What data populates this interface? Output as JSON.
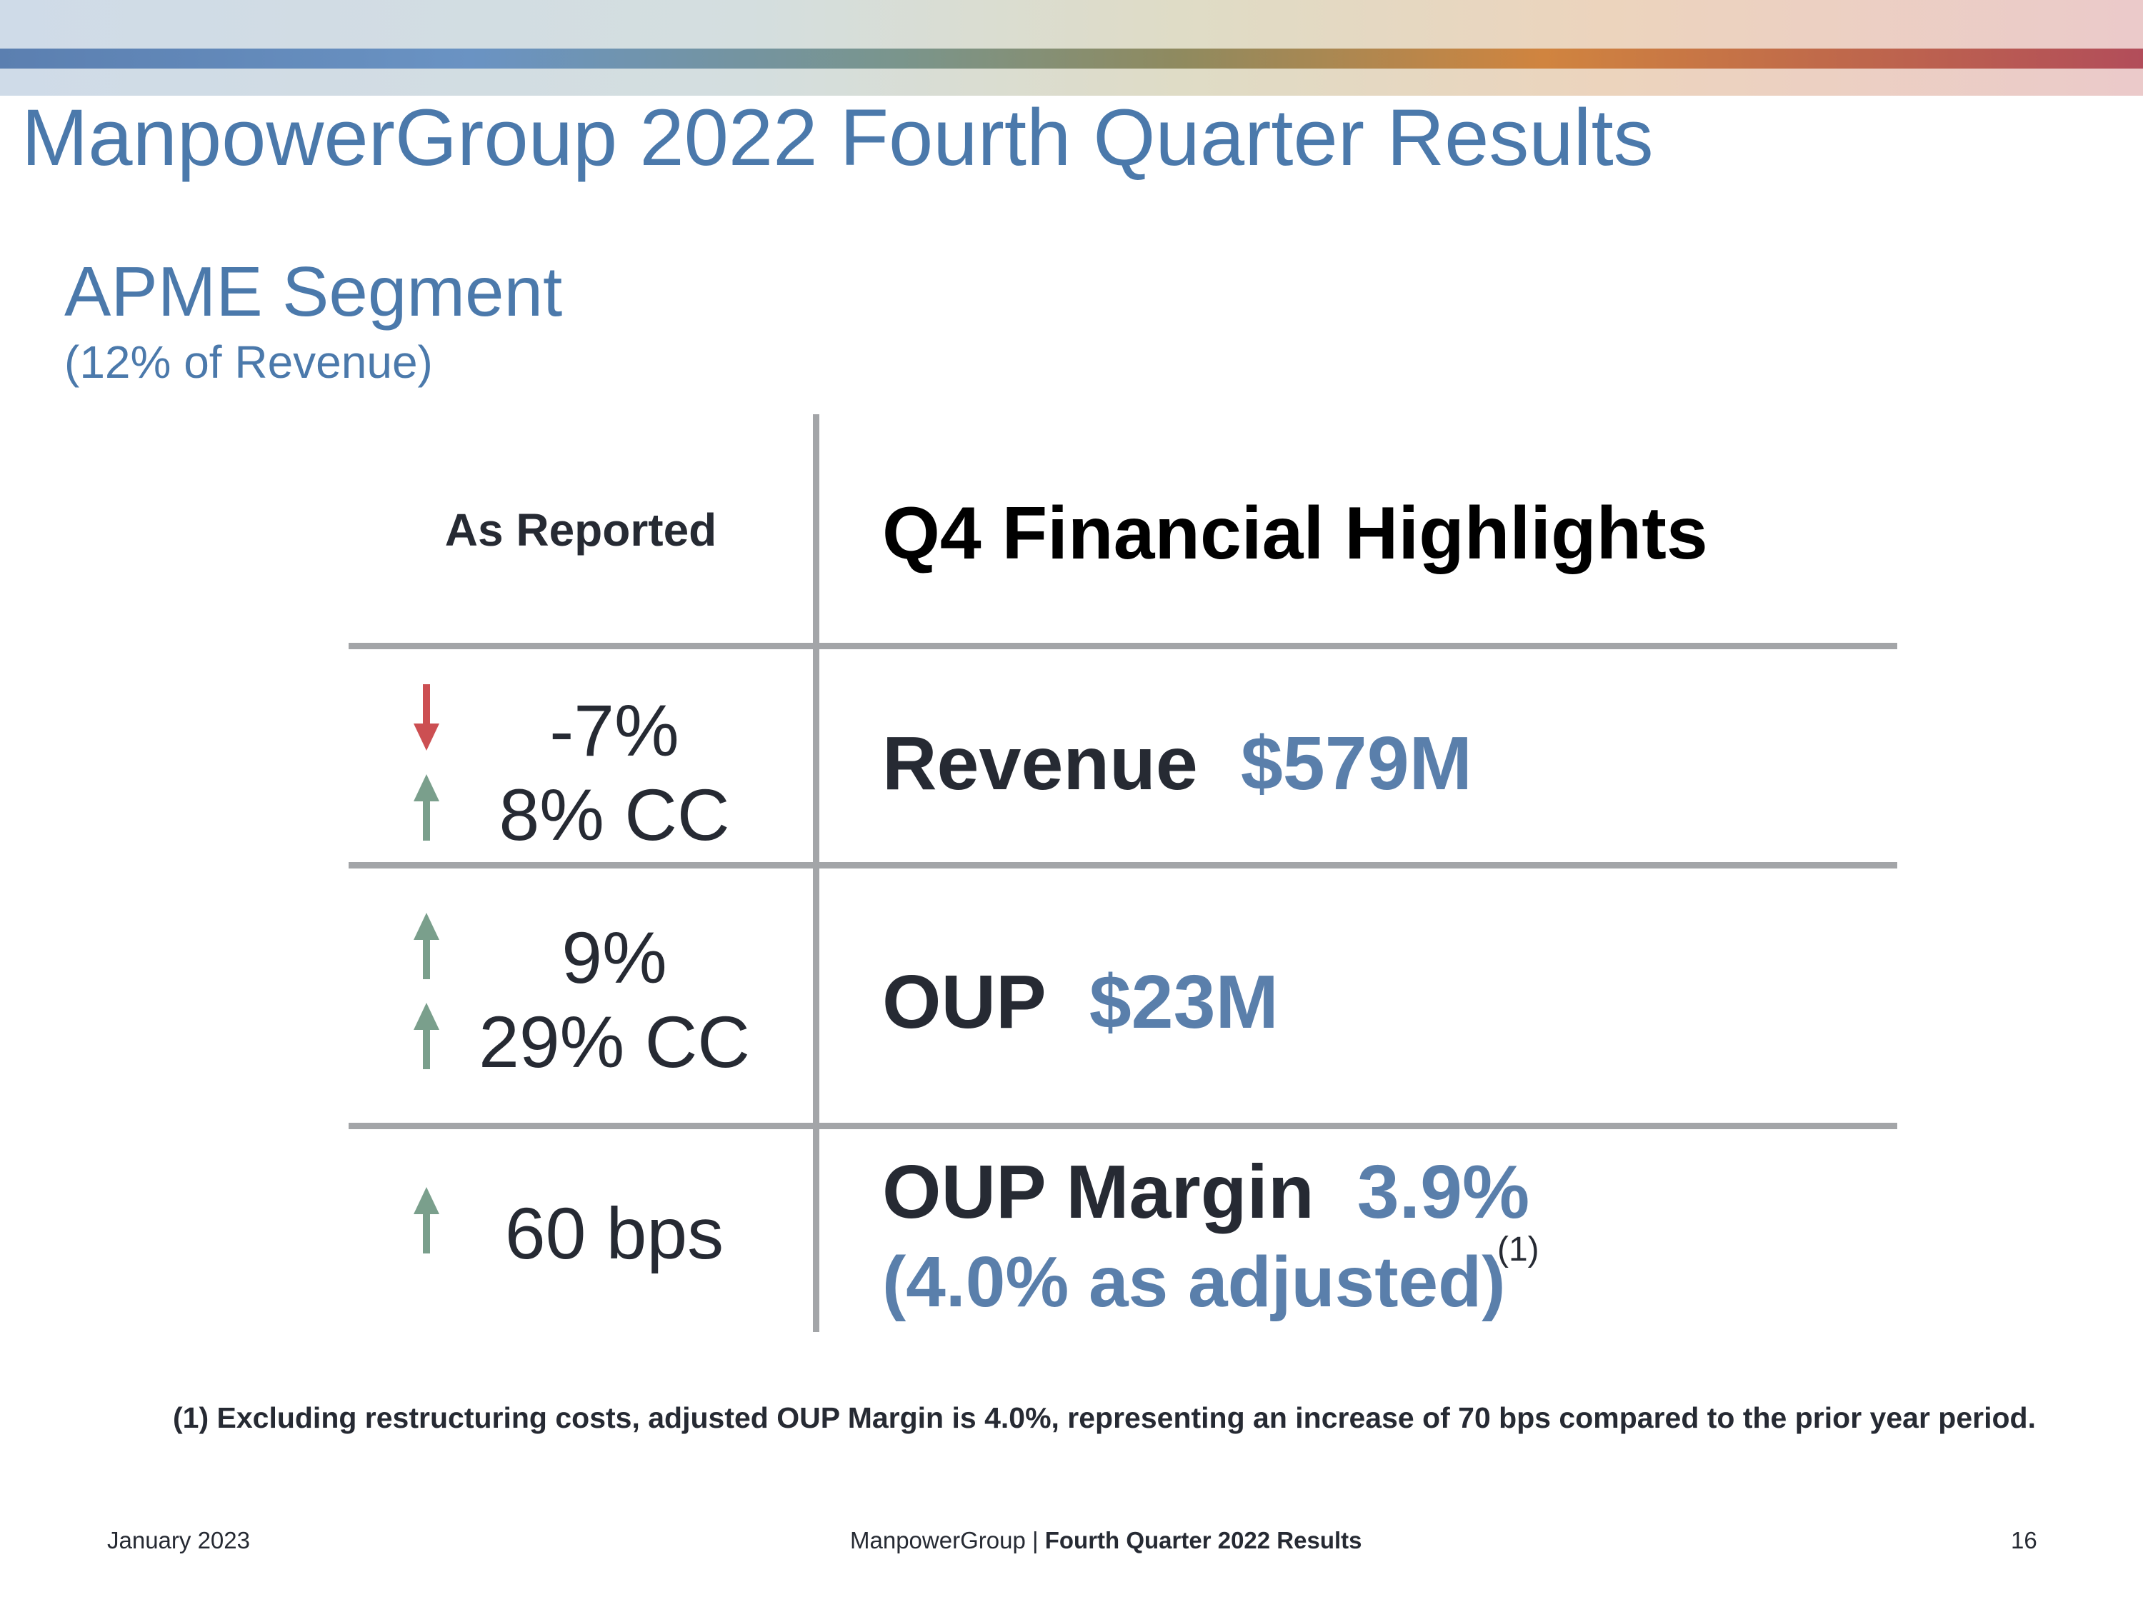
{
  "header": {
    "title": "ManpowerGroup 2022 Fourth Quarter Results"
  },
  "segment": {
    "title": "APME Segment",
    "subtitle": "(12% of Revenue)"
  },
  "table": {
    "left_header": "As Reported",
    "right_header": "Q4 Financial Highlights",
    "rows": [
      {
        "changes": [
          {
            "text": "-7%",
            "direction": "down"
          },
          {
            "text": "8% CC",
            "direction": "up"
          }
        ],
        "label": "Revenue",
        "value": "$579M"
      },
      {
        "changes": [
          {
            "text": "9%",
            "direction": "up"
          },
          {
            "text": "29% CC",
            "direction": "up"
          }
        ],
        "label": "OUP",
        "value": "$23M"
      },
      {
        "changes": [
          {
            "text": "60 bps",
            "direction": "up"
          }
        ],
        "label": "OUP Margin",
        "value": "3.9%",
        "adjusted": "(4.0% as adjusted)",
        "footnote_ref": "(1)"
      }
    ]
  },
  "footnote": "(1) Excluding restructuring costs, adjusted OUP Margin is 4.0%, representing an increase of 70 bps compared to the prior year period.",
  "footer": {
    "date": "January 2023",
    "company": "ManpowerGroup",
    "separator": " | ",
    "report": "Fourth Quarter 2022 Results",
    "page": "16"
  },
  "colors": {
    "brand_blue": "#4b79ab",
    "value_blue": "#5a7fab",
    "arrow_up": "#7a9f8c",
    "arrow_down": "#cc4f52",
    "rule_gray": "#a3a5a8"
  },
  "icons": {
    "up": "arrow-up-icon",
    "down": "arrow-down-icon"
  }
}
